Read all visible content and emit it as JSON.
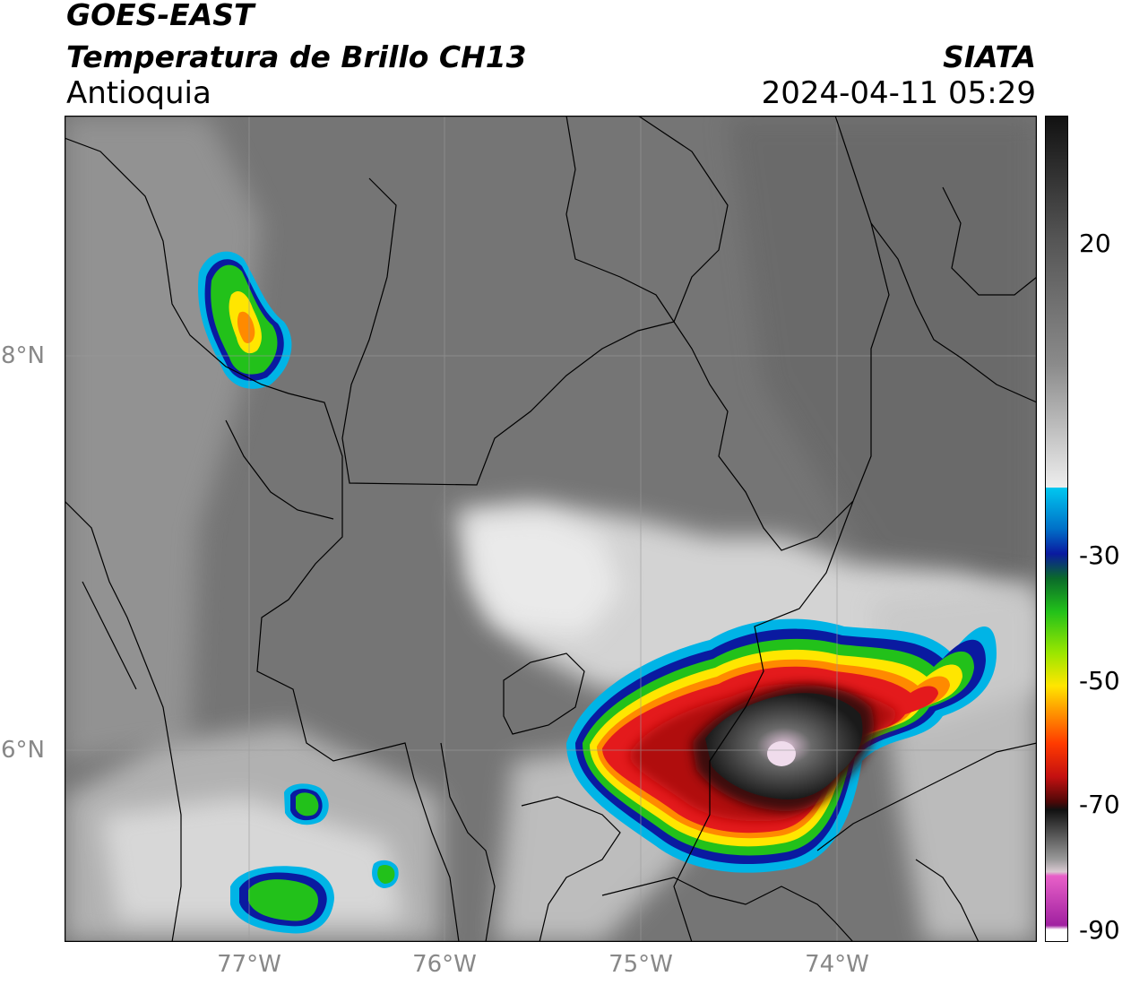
{
  "header": {
    "satellite": "GOES-EAST",
    "product": "Temperatura de Brillo CH13",
    "region": "Antioquia",
    "brand": "SIATA",
    "datetime": "2024-04-11 05:29"
  },
  "axes": {
    "y_ticks": [
      "8°N",
      "6°N"
    ],
    "x_ticks": [
      "77°W",
      "76°W",
      "75°W",
      "74°W"
    ]
  },
  "colorbar": {
    "tick_labels": [
      "20",
      "-30",
      "-50",
      "-70",
      "-90"
    ]
  },
  "colors": {
    "background_gray": "#7a7a7a",
    "cloud_light": "#e8e8e8",
    "coldest_pink": "#e6a6e6",
    "cold_red": "#e41a1c",
    "warm_green": "#22c11a",
    "edge_blue": "#00b4e6",
    "yellow": "#ffe600",
    "orange": "#ff8a00",
    "border_line": "#000000"
  }
}
